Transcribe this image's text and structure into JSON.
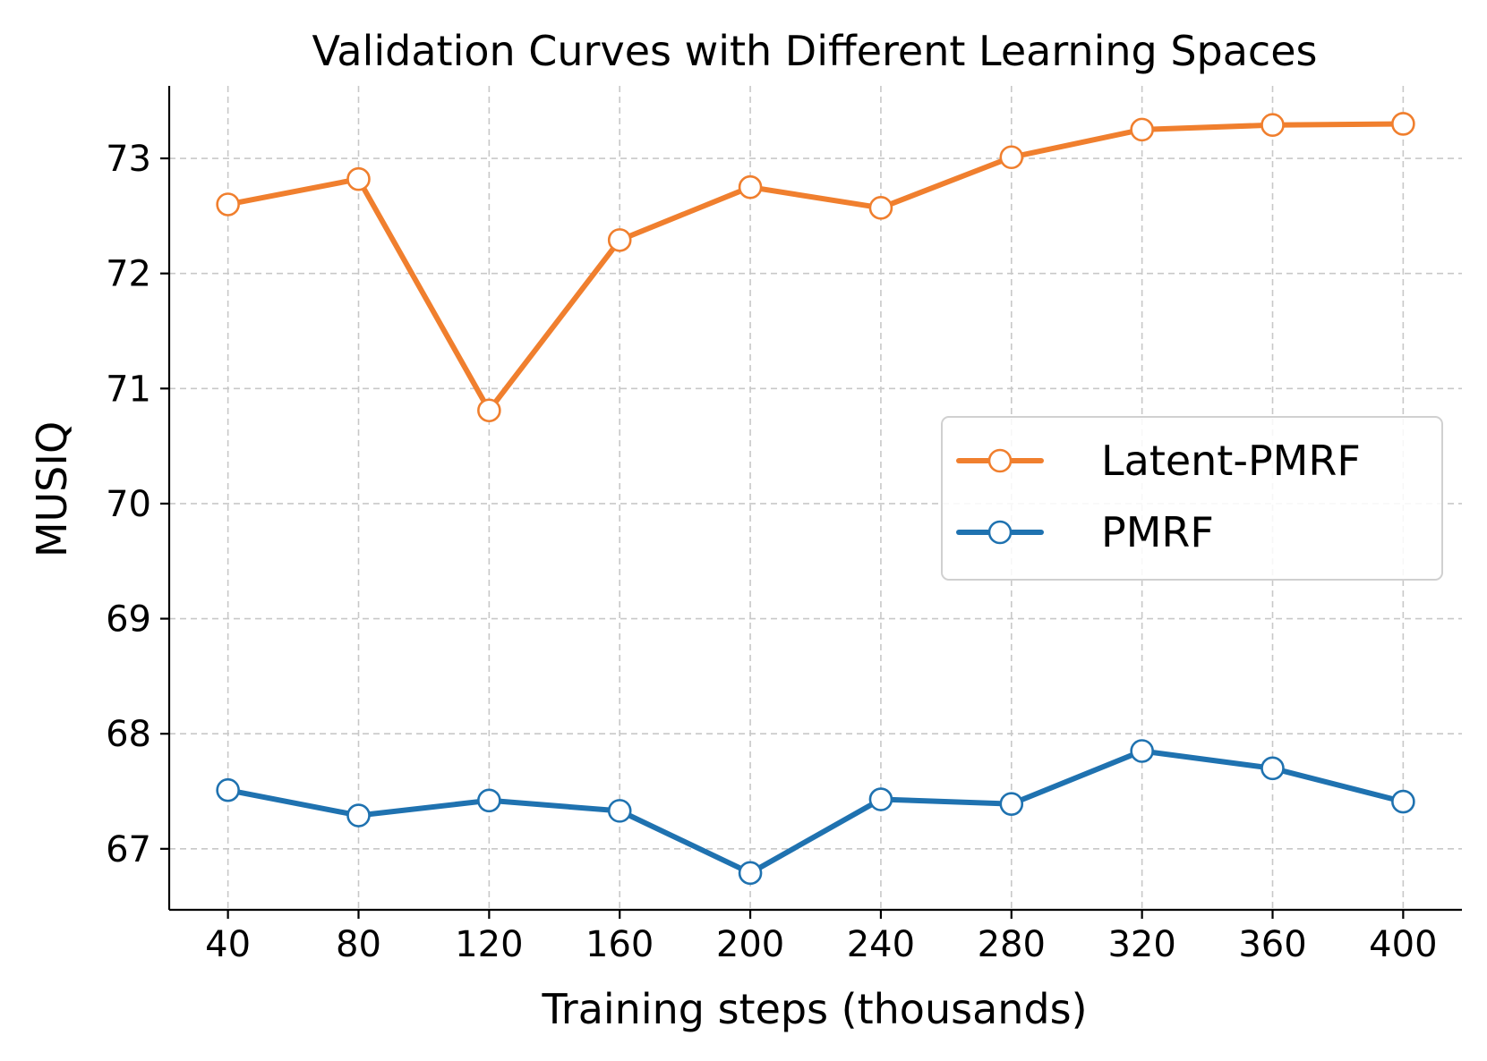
{
  "chart_data": {
    "type": "line",
    "title": "Validation Curves with Different Learning Spaces",
    "xlabel": "Training steps (thousands)",
    "ylabel": "MUSIQ",
    "x": [
      40,
      80,
      120,
      160,
      200,
      240,
      280,
      320,
      360,
      400
    ],
    "x_tick_labels": [
      "40",
      "80",
      "120",
      "160",
      "200",
      "240",
      "280",
      "320",
      "360",
      "400"
    ],
    "y_ticks": [
      67,
      68,
      69,
      70,
      71,
      72,
      73
    ],
    "y_tick_labels": [
      "67",
      "68",
      "69",
      "70",
      "71",
      "72",
      "73"
    ],
    "xlim": [
      22,
      418
    ],
    "ylim": [
      66.47,
      73.63
    ],
    "grid": true,
    "legend_position": "center-right",
    "series": [
      {
        "name": "Latent-PMRF",
        "color": "#f07f2e",
        "values": [
          72.6,
          72.82,
          70.81,
          72.29,
          72.75,
          72.57,
          73.01,
          73.25,
          73.29,
          73.3
        ]
      },
      {
        "name": "PMRF",
        "color": "#1f72b0",
        "values": [
          67.51,
          67.29,
          67.42,
          67.33,
          66.79,
          67.43,
          67.39,
          67.85,
          67.7,
          67.41
        ]
      }
    ]
  }
}
